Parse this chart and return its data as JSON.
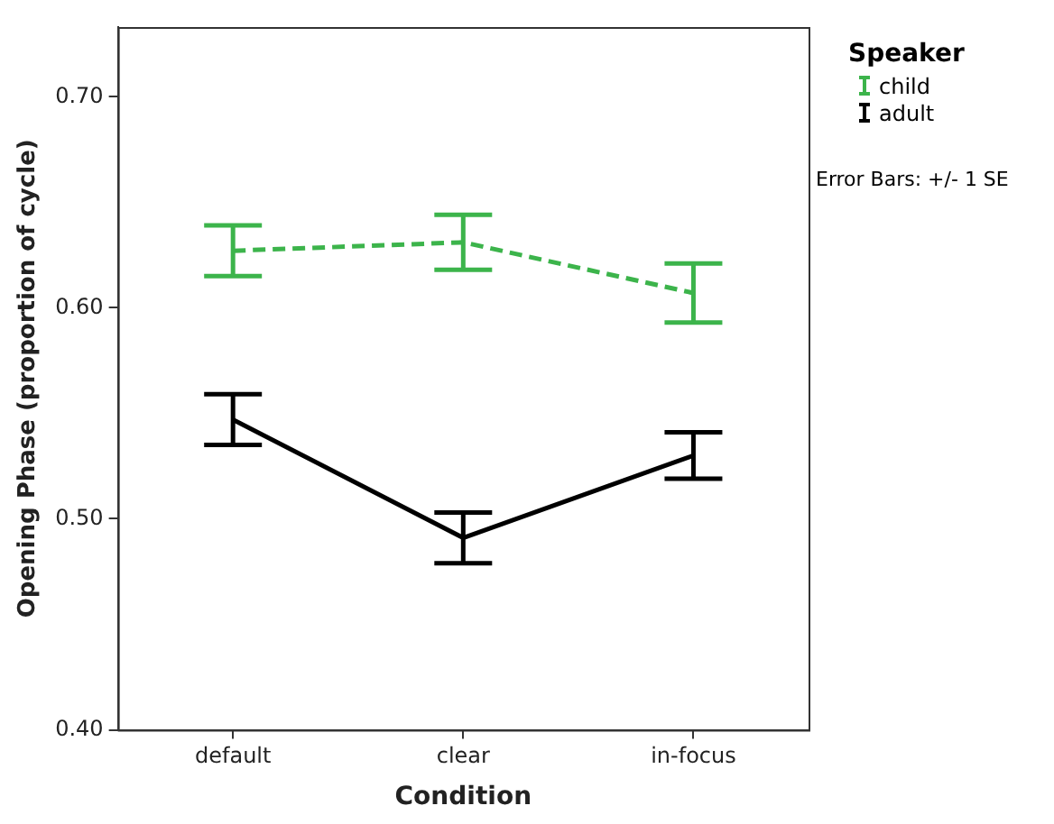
{
  "chart_data": {
    "type": "line",
    "xlabel": "Condition",
    "ylabel": "Opening Phase (proportion of cycle)",
    "legend_title": "Speaker",
    "legend": "top right",
    "marker": "none",
    "grid": false,
    "categories": [
      "default",
      "clear",
      "in-focus"
    ],
    "series": [
      {
        "name": "child",
        "color": "#3cb44b",
        "line_style": "dashed",
        "values": [
          0.627,
          0.631,
          0.607
        ],
        "errors": [
          0.012,
          0.013,
          0.014
        ]
      },
      {
        "name": "adult",
        "color": "#000000",
        "line_style": "solid",
        "values": [
          0.547,
          0.491,
          0.53
        ],
        "errors": [
          0.012,
          0.012,
          0.011
        ]
      }
    ],
    "ylim": [
      0.4,
      0.733
    ],
    "yticks": [
      {
        "value": 0.4,
        "label": "0.40"
      },
      {
        "value": 0.5,
        "label": "0.50"
      },
      {
        "value": 0.6,
        "label": "0.60"
      },
      {
        "value": 0.7,
        "label": "0.70"
      }
    ],
    "annotations": [
      "Error Bars: +/- 1 SE"
    ]
  }
}
